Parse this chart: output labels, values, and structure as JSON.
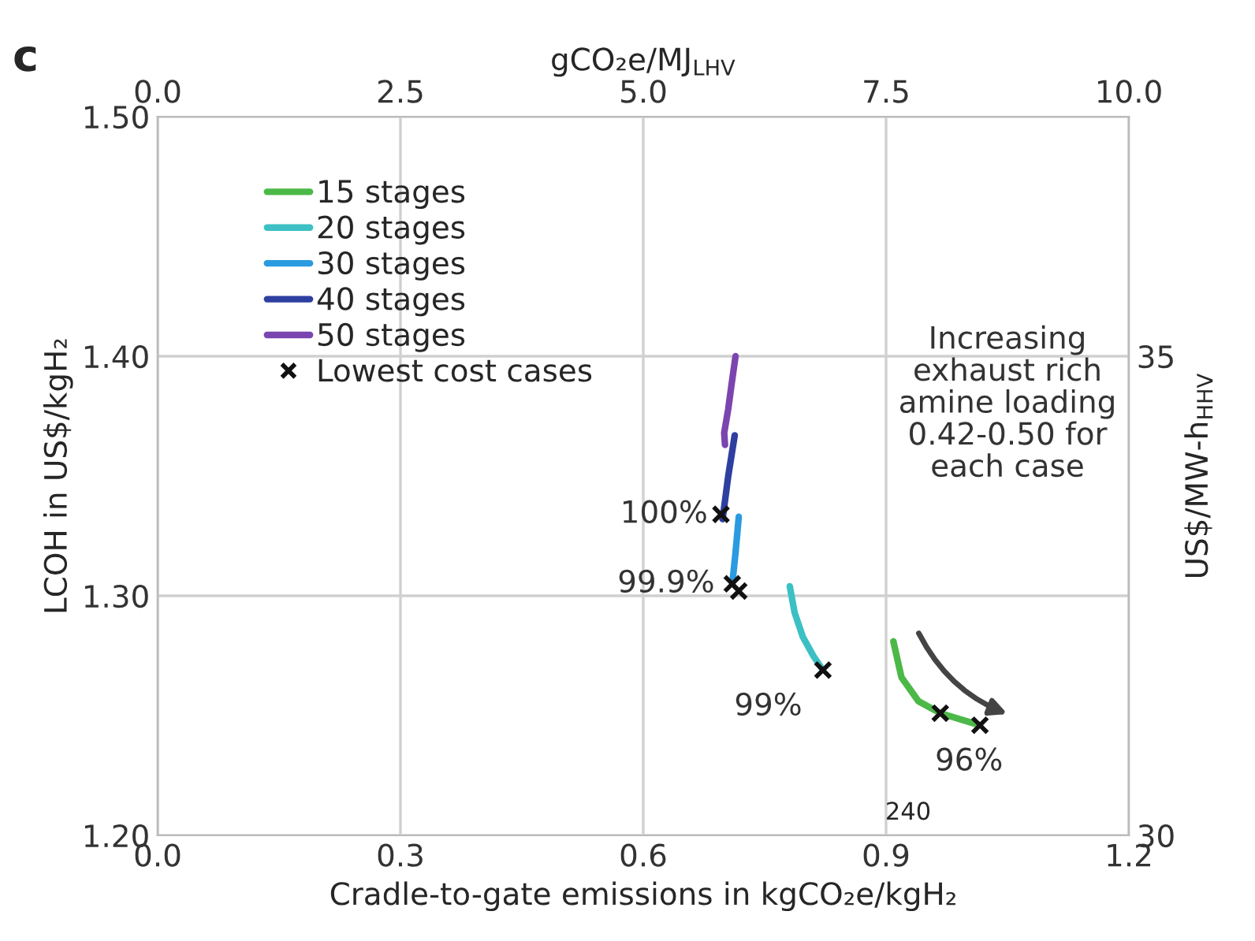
{
  "chart_data": {
    "type": "line",
    "xlabel": "Cradle-to-gate emissions in kgCO₂e/kgH₂",
    "ylabel": "LCOH in US$/kgH₂",
    "y2label": "US$/MW-h$_{HHV}$",
    "x2label": "gCO₂e/MJ$_{LHV}$",
    "xlim": [
      0,
      1.2
    ],
    "xticks": [
      {
        "value": 0,
        "label": "0.0"
      },
      {
        "value": 0.3,
        "label": "0.3"
      },
      {
        "value": 0.6,
        "label": "0.6"
      },
      {
        "value": 0.9,
        "label": "0.9"
      },
      {
        "value": 1.2,
        "label": "1.2"
      }
    ],
    "ylim": [
      1.2,
      1.5
    ],
    "yticks": [
      {
        "value": 1.2,
        "label": "1.20"
      },
      {
        "value": 1.3,
        "label": "1.30"
      },
      {
        "value": 1.4,
        "label": "1.40"
      },
      {
        "value": 1.5,
        "label": "1.50"
      }
    ],
    "x2lim": [
      0,
      10
    ],
    "x2ticks": [
      {
        "value": 0,
        "label": "0.0"
      },
      2.5,
      {
        "value": 5,
        "label": "5.0"
      },
      7.5,
      {
        "value": 10,
        "label": "10.0"
      }
    ],
    "y2lim": [
      30,
      37.5
    ],
    "y2ticks": [
      30,
      35
    ],
    "grid": true,
    "legend": "top left",
    "series": [
      {
        "name": "15 stages",
        "color": "#4cb848",
        "x": [
          0.909,
          0.919,
          0.94,
          0.967,
          1.016
        ],
        "values": [
          1.281,
          1.266,
          1.256,
          1.251,
          1.246
        ]
      },
      {
        "name": "20 stages",
        "color": "#3cc0c4",
        "x": [
          0.781,
          0.787,
          0.797,
          0.81,
          0.822
        ],
        "values": [
          1.304,
          1.293,
          1.283,
          1.275,
          1.269
        ]
      },
      {
        "name": "30 stages",
        "color": "#2a9be0",
        "x": [
          0.718,
          0.714,
          0.71
        ],
        "values": [
          1.333,
          1.318,
          1.305
        ]
      },
      {
        "name": "40 stages",
        "color": "#2f3fa0",
        "x": [
          0.713,
          0.705,
          0.698
        ],
        "values": [
          1.367,
          1.35,
          1.332
        ]
      },
      {
        "name": "50 stages",
        "color": "#7b45b0",
        "x": [
          0.714,
          0.709,
          0.705,
          0.7,
          0.701
        ],
        "values": [
          1.4,
          1.388,
          1.378,
          1.368,
          1.363
        ]
      },
      {
        "name": "Lowest cost cases",
        "type": "scatter",
        "marker": "cross",
        "color": "#111111",
        "x": [
          0.696,
          0.71,
          0.718,
          0.822,
          0.967,
          1.016
        ],
        "values": [
          1.334,
          1.305,
          1.302,
          1.269,
          1.251,
          1.246
        ]
      }
    ],
    "annotations": [
      "c",
      {
        "text": "100%",
        "x": 0.696,
        "y": 1.334
      },
      {
        "text": "99.9%",
        "x": 0.71,
        "y": 1.305
      },
      {
        "text": "99%",
        "x": 0.822,
        "y": 1.269
      },
      {
        "text": "96%",
        "x": 1.016,
        "y": 1.246
      },
      "Increasing\nexhaust rich\namine loading\n0.42-0.50 for\neach case",
      "240"
    ]
  }
}
